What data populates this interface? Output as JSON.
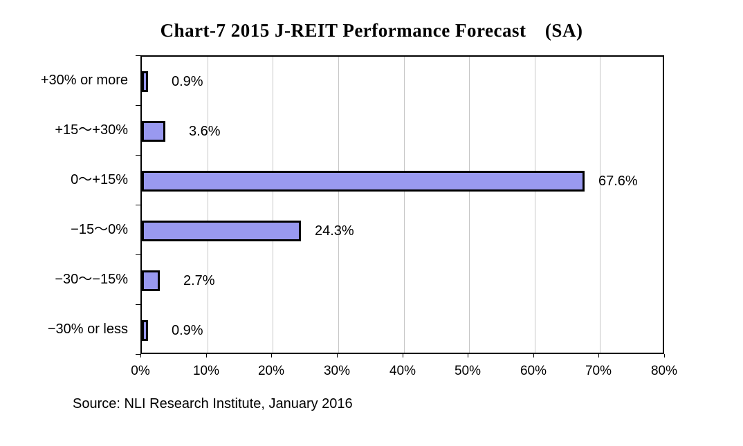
{
  "chart_data": {
    "type": "bar",
    "orientation": "horizontal",
    "title": "Chart-7  2015 J-REIT Performance Forecast　(SA)",
    "categories": [
      "+30% or more",
      "+15～+30%",
      "0～+15%",
      "−15～0%",
      "−30～−15%",
      "−30% or less"
    ],
    "values": [
      0.9,
      3.6,
      67.6,
      24.3,
      2.7,
      0.9
    ],
    "value_labels": [
      "0.9%",
      "3.6%",
      "67.6%",
      "24.3%",
      "2.7%",
      "0.9%"
    ],
    "xlabel": "",
    "ylabel": "",
    "xlim": [
      0,
      80
    ],
    "x_tick_labels": [
      "0%",
      "10%",
      "20%",
      "30%",
      "40%",
      "50%",
      "60%",
      "70%",
      "80%"
    ],
    "grid": "vertical",
    "legend": "none",
    "bar_fill_color": "#9999f0",
    "bar_border_color": "#000000",
    "gridline_color": "#c6c6c6",
    "source": "Source: NLI Research Institute, January 2016"
  }
}
